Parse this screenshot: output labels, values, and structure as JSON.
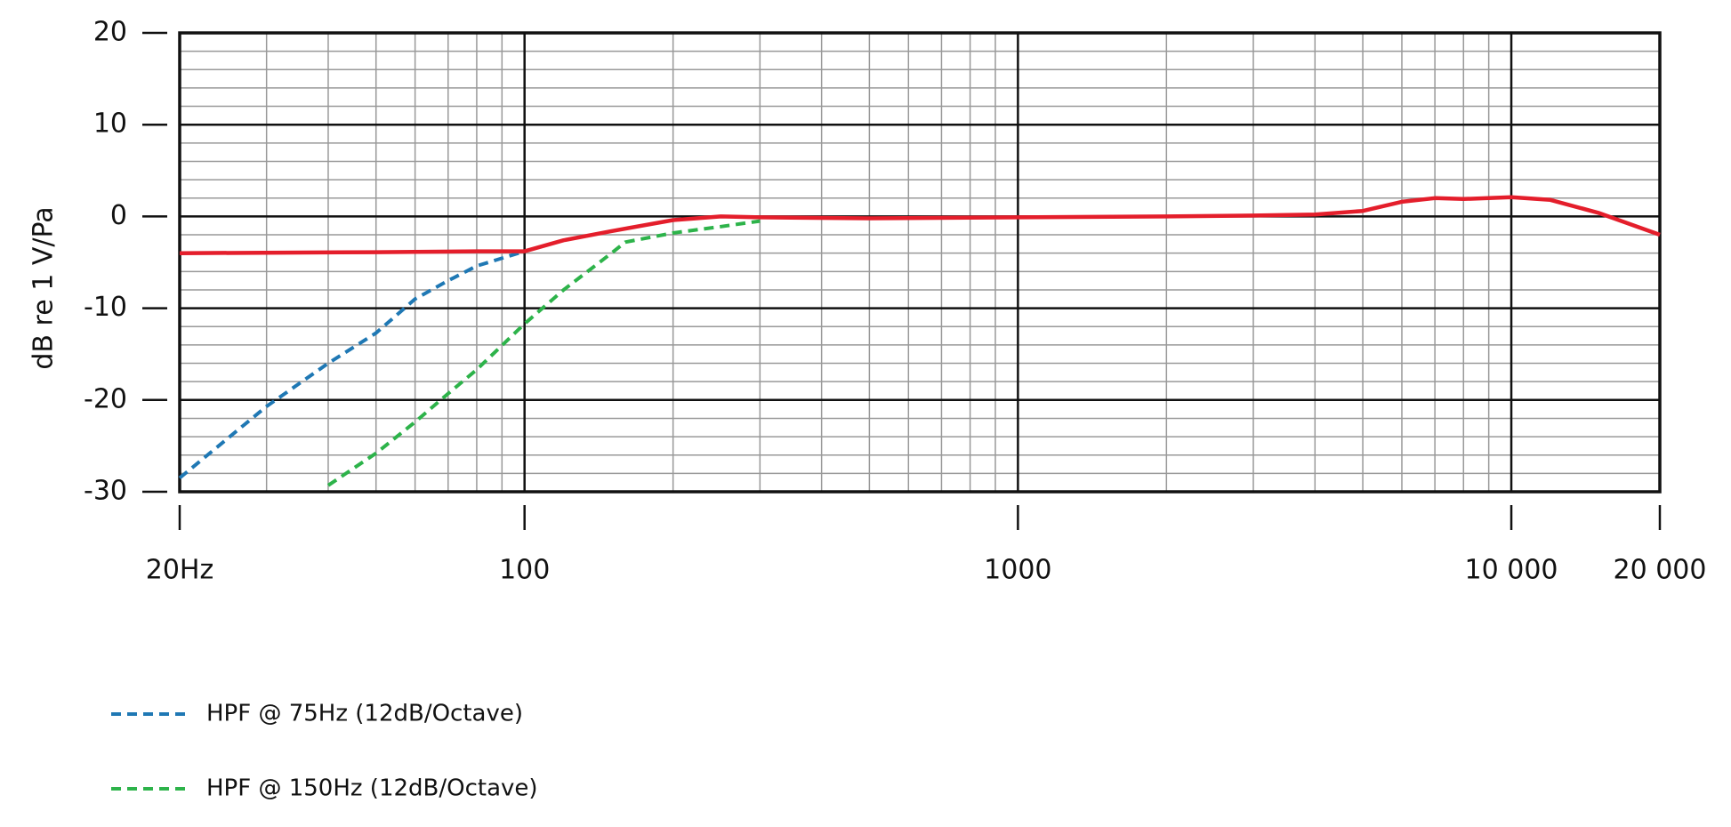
{
  "chart_data": {
    "type": "line",
    "ylabel": "dB re 1 V/Pa",
    "xscale": "log",
    "xlim": [
      20,
      20000
    ],
    "ylim": [
      -30,
      20
    ],
    "xticks": [
      {
        "value": 20,
        "label": "20Hz"
      },
      100,
      1000,
      {
        "value": 10000,
        "label": "10 000"
      },
      {
        "value": 20000,
        "label": "20 000"
      }
    ],
    "yticks": [
      20,
      10,
      0,
      -10,
      -20,
      -30
    ],
    "x_minor_ticks": [
      30,
      40,
      50,
      60,
      70,
      80,
      90,
      200,
      300,
      400,
      500,
      600,
      700,
      800,
      900,
      2000,
      3000,
      4000,
      5000,
      6000,
      7000,
      8000,
      9000
    ],
    "y_minor_ticks": [
      -28,
      -26,
      -24,
      -22,
      -18,
      -16,
      -14,
      -12,
      -8,
      -6,
      -4,
      -2,
      2,
      4,
      6,
      8,
      12,
      14,
      16,
      18
    ],
    "grid": true,
    "legend": "bottom left",
    "series": [
      {
        "color": "#e41e2b",
        "dashed": false,
        "x": [
          20,
          50,
          80,
          100,
          120,
          150,
          200,
          250,
          300,
          500,
          1000,
          2000,
          3000,
          4000,
          5000,
          6000,
          7000,
          8000,
          10000,
          12000,
          15000,
          20000
        ],
        "values": [
          -4,
          -3.9,
          -3.8,
          -3.8,
          -2.6,
          -1.6,
          -0.4,
          0,
          -0.1,
          -0.2,
          -0.1,
          0,
          0.1,
          0.2,
          0.6,
          1.6,
          2,
          1.9,
          2.1,
          1.8,
          0.4,
          -2
        ]
      },
      {
        "name": "HPF @ 75Hz (12dB/Octave)",
        "color": "#1f78b4",
        "dashed": true,
        "x": [
          20,
          30,
          40,
          50,
          60,
          70,
          80,
          100
        ],
        "values": [
          -28.5,
          -20.7,
          -16,
          -12.7,
          -9,
          -7,
          -5.4,
          -3.8
        ]
      },
      {
        "name": "HPF @ 150Hz (12dB/Octave)",
        "color": "#2db34a",
        "dashed": true,
        "x": [
          40,
          50,
          60,
          70,
          80,
          100,
          120,
          150,
          160,
          200,
          250,
          300
        ],
        "values": [
          -29.3,
          -25.8,
          -22.4,
          -19.3,
          -16.7,
          -11.7,
          -8,
          -4,
          -2.8,
          -1.8,
          -1.1,
          -0.5
        ]
      }
    ]
  }
}
